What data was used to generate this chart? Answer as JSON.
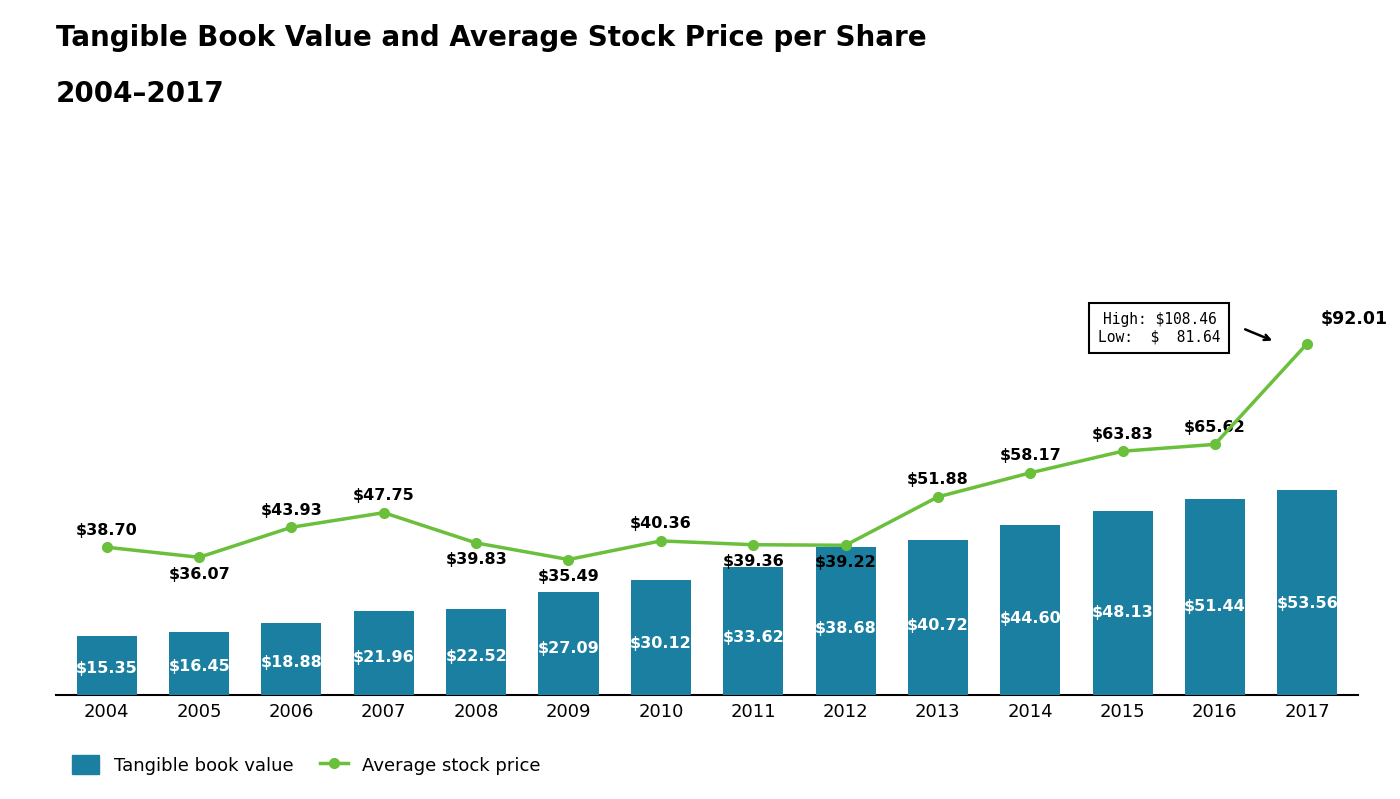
{
  "years": [
    2004,
    2005,
    2006,
    2007,
    2008,
    2009,
    2010,
    2011,
    2012,
    2013,
    2014,
    2015,
    2016,
    2017
  ],
  "book_values": [
    15.35,
    16.45,
    18.88,
    21.96,
    22.52,
    27.09,
    30.12,
    33.62,
    38.68,
    40.72,
    44.6,
    48.13,
    51.44,
    53.56
  ],
  "stock_prices": [
    38.7,
    36.07,
    43.93,
    47.75,
    39.83,
    35.49,
    40.36,
    39.36,
    39.22,
    51.88,
    58.17,
    63.83,
    65.62,
    92.01
  ],
  "bar_color": "#1a7fa0",
  "line_color": "#6abf3b",
  "title_line1": "Tangible Book Value and Average Stock Price per Share",
  "title_line2": "2004–2017",
  "legend_bar_label": "Tangible book value",
  "legend_line_label": "Average stock price",
  "high_label": "High: $108.46",
  "low_label": "Low:  $  81.64",
  "ylim": [
    0,
    115
  ],
  "background_color": "#ffffff",
  "title_fontsize": 20,
  "bar_label_fontsize": 11.5,
  "line_label_fontsize": 11.5,
  "axis_label_fontsize": 13,
  "legend_fontsize": 13
}
